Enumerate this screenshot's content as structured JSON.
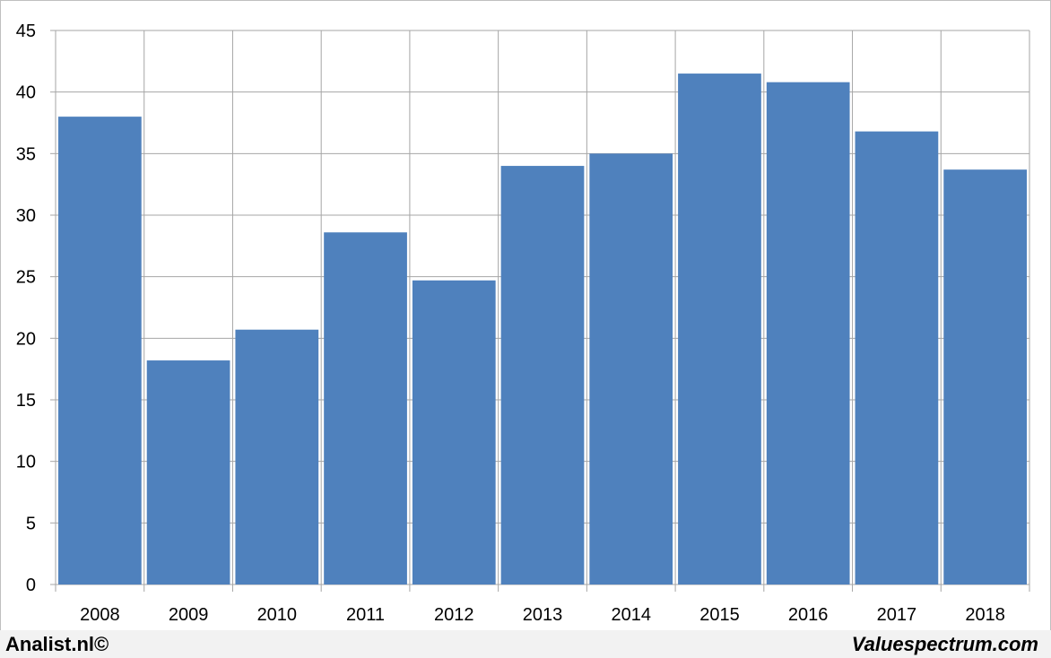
{
  "chart_data": {
    "type": "bar",
    "categories": [
      "2008",
      "2009",
      "2010",
      "2011",
      "2012",
      "2013",
      "2014",
      "2015",
      "2016",
      "2017",
      "2018"
    ],
    "values": [
      38.0,
      18.2,
      20.7,
      28.6,
      24.7,
      34.0,
      35.0,
      41.5,
      40.8,
      36.8,
      33.7
    ],
    "ylim": [
      0,
      45
    ],
    "yticks": [
      0,
      5,
      10,
      15,
      20,
      25,
      30,
      35,
      40,
      45
    ],
    "grid": true,
    "bar_color": "#4f81bd",
    "title": "",
    "xlabel": "",
    "ylabel": ""
  },
  "footer": {
    "left_text": "Analist.nl©",
    "right_text": "Valuespectrum.com"
  }
}
